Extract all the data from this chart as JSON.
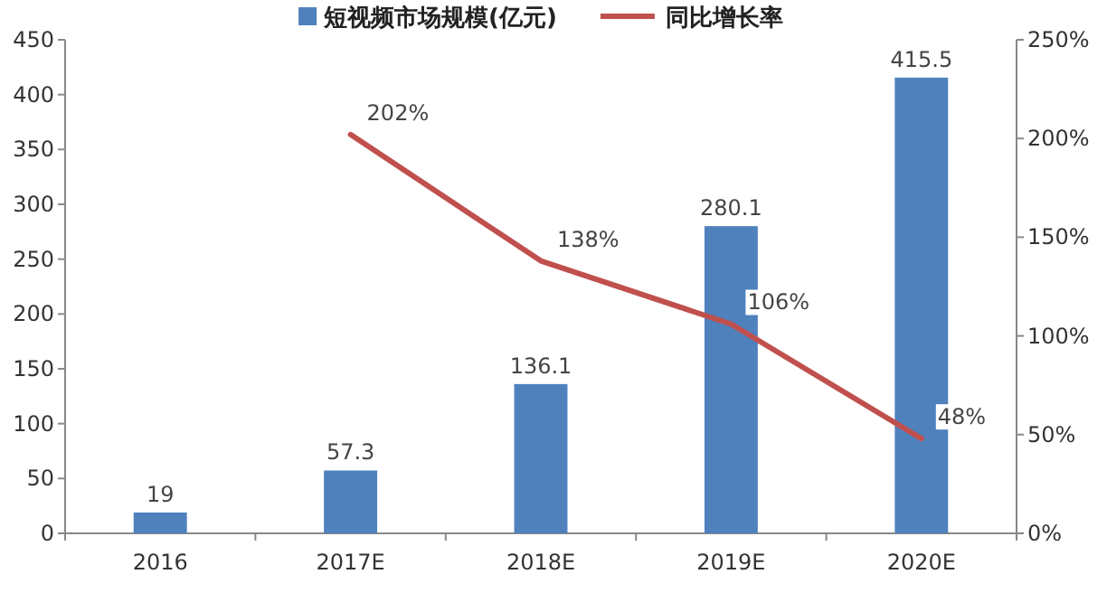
{
  "chart_data": {
    "type": "bar",
    "categories": [
      "2016",
      "2017E",
      "2018E",
      "2019E",
      "2020E"
    ],
    "series": [
      {
        "name": "短视频市场规模(亿元)",
        "color": "#4f81bd",
        "values": [
          19,
          57.3,
          136.1,
          280.1,
          415.5
        ],
        "value_labels": [
          "19",
          "57.3",
          "136.1",
          "280.1",
          "415.5"
        ]
      },
      {
        "name": "同比增长率",
        "type": "line",
        "axis": "y2",
        "color": "#c0504d",
        "values": [
          null,
          202,
          138,
          106,
          48
        ],
        "value_labels": [
          null,
          "202%",
          "138%",
          "106%",
          "48%"
        ]
      }
    ],
    "ylim": [
      0,
      450
    ],
    "yticks": [
      0,
      50,
      100,
      150,
      200,
      250,
      300,
      350,
      400,
      450
    ],
    "y2lim": [
      0,
      250
    ],
    "y2ticks": [
      {
        "value": 0,
        "label": "0%"
      },
      {
        "value": 50,
        "label": "50%"
      },
      {
        "value": 100,
        "label": "100%"
      },
      {
        "value": 150,
        "label": "150%"
      },
      {
        "value": 200,
        "label": "200%"
      },
      {
        "value": 250,
        "label": "250%"
      }
    ],
    "legend": "top",
    "marker": "none",
    "line_style": "solid"
  }
}
